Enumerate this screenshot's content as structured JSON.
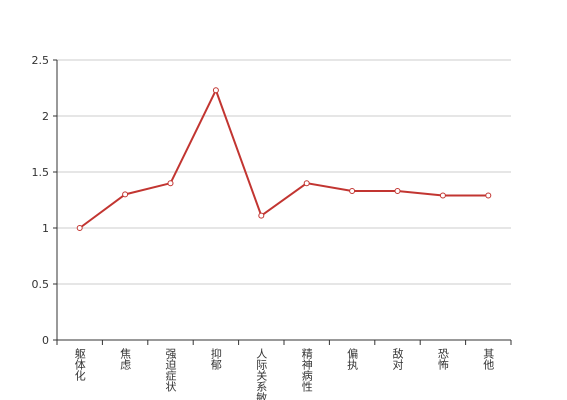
{
  "chart_data": {
    "type": "line",
    "categories": [
      "躯体化",
      "焦虑",
      "强迫症状",
      "抑郁",
      "人际关系敏感",
      "精神病性",
      "偏执",
      "敌对",
      "恐怖",
      "其他"
    ],
    "series": [
      {
        "name": null,
        "color": "#c23531",
        "values": [
          1.0,
          1.3,
          1.4,
          2.23,
          1.11,
          1.4,
          1.33,
          1.33,
          1.29,
          1.29
        ]
      }
    ],
    "ylim": [
      0,
      2.5
    ],
    "yticks": [
      0,
      0.5,
      1,
      1.5,
      2,
      2.5
    ],
    "grid": true
  }
}
